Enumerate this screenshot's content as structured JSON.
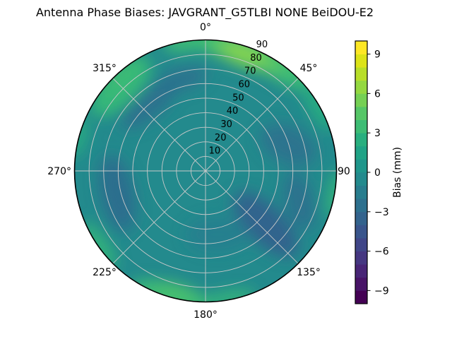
{
  "chart_data": {
    "type": "heatmap",
    "projection": "polar",
    "title": "Antenna Phase Biases: JAVGRANT_G5TLBI NONE BeiDOU-E2",
    "colormap": "viridis",
    "value_range_mm": [
      -10,
      10
    ],
    "contour_step_mm": 1,
    "theta_zero": "top",
    "theta_direction": "clockwise",
    "grid": "on",
    "theta_tick_labels": [
      "0°",
      "45°",
      "90",
      "135°",
      "180°",
      "225°",
      "270°",
      "315°"
    ],
    "r_tick_labels": [
      "10",
      "20",
      "30",
      "40",
      "50",
      "60",
      "70",
      "80",
      "90"
    ],
    "colorbar": {
      "label": "Bias (mm)",
      "position": "right",
      "tick_values": [
        9,
        6,
        3,
        0,
        -3,
        -6,
        -9
      ],
      "tick_labels": [
        "9",
        "6",
        "3",
        "0",
        "−3",
        "−6",
        "−9"
      ],
      "band_colors": [
        "#440154",
        "#481467",
        "#482576",
        "#453781",
        "#404688",
        "#39558c",
        "#33638d",
        "#2d708e",
        "#287d8e",
        "#238a8d",
        "#1f968b",
        "#20a386",
        "#29af7f",
        "#3dbc74",
        "#56c667",
        "#75d054",
        "#94d840",
        "#b8de29",
        "#dce318",
        "#fde725"
      ]
    },
    "values_estimated": {
      "note": "bias in mm estimated from colors; azimuth clockwise from top, radial axis is zenith angle 0-90",
      "azimuth_deg": [
        0,
        45,
        90,
        135,
        180,
        225,
        270,
        315
      ],
      "zenith_deg": [
        20,
        50,
        80
      ],
      "bias_mm": [
        [
          0.5,
          1.5,
          4.5
        ],
        [
          0.5,
          0.5,
          5.5
        ],
        [
          0.0,
          -0.5,
          1.5
        ],
        [
          -0.5,
          -2.5,
          0.5
        ],
        [
          0.5,
          0.0,
          3.5
        ],
        [
          0.0,
          -1.5,
          3.0
        ],
        [
          0.0,
          -1.5,
          2.0
        ],
        [
          0.5,
          -1.0,
          4.0
        ]
      ],
      "center_mm": 0.5,
      "max_mm": 6.5,
      "max_at": {
        "azimuth_deg": 25,
        "zenith_deg": 85
      },
      "min_mm": -3.0,
      "min_at": {
        "azimuth_deg": 135,
        "zenith_deg": 55
      }
    },
    "colors": {
      "base": "#238a8d",
      "bright_green": "#8bd64a",
      "light_green": "#5ec962",
      "green": "#3dbc74",
      "sea_green": "#35b779",
      "soft_green": "#4cc26c",
      "teal_green": "#2ab07f",
      "steel_blue": "#33638d",
      "slate_blue": "#2d708e",
      "mid_blue": "#2f6b8e",
      "deep_teal": "#287d8e",
      "grid": "#c9c9c9",
      "outline": "#000000"
    }
  }
}
